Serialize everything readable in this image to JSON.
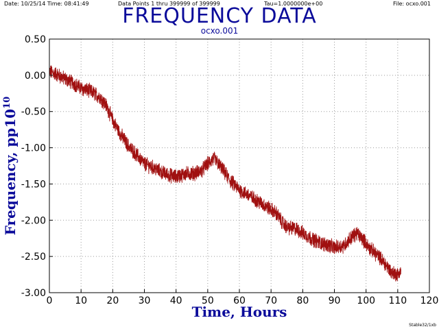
{
  "header": {
    "date_time": "Date: 10/25/14   Time: 08:41:49",
    "points": "Data Points 1 thru 399999 of 399999",
    "tau": "Tau=1.0000000e+00",
    "file": "File: ocxo.001"
  },
  "footer": "Stable32/1xb",
  "colors": {
    "series": "#a01010",
    "title": "#0b0b9a",
    "grid": "#9a9a9a"
  },
  "chart_data": {
    "type": "line",
    "title": "FREQUENCY DATA",
    "subtitle": "ocxo.001",
    "xlabel": "Time, Hours",
    "ylabel_main": "Frequency, pp10",
    "ylabel_exp": "10",
    "xlim": [
      0,
      120
    ],
    "ylim": [
      -3.0,
      0.5
    ],
    "xticks": [
      0,
      10,
      20,
      30,
      40,
      50,
      60,
      70,
      80,
      90,
      100,
      110,
      120
    ],
    "yticks": [
      0.5,
      0.0,
      -0.5,
      -1.0,
      -1.5,
      -2.0,
      -2.5,
      -3.0
    ],
    "ytick_labels": [
      "0.50",
      "0.00",
      "-0.50",
      "-1.00",
      "-1.50",
      "-2.00",
      "-2.50",
      "-3.00"
    ],
    "grid": true,
    "series": [
      {
        "x": [
          0,
          2,
          5,
          8,
          10,
          13,
          16,
          18,
          20,
          22,
          25,
          28,
          30,
          33,
          36,
          38,
          40,
          43,
          46,
          48,
          50,
          52,
          53,
          55,
          57,
          60,
          63,
          66,
          68,
          70,
          72,
          73,
          75,
          78,
          80,
          83,
          86,
          88,
          90,
          93,
          95,
          97,
          99,
          101,
          104,
          106,
          108,
          110,
          111
        ],
        "y": [
          0.05,
          0.02,
          -0.05,
          -0.12,
          -0.18,
          -0.22,
          -0.3,
          -0.42,
          -0.62,
          -0.78,
          -0.98,
          -1.12,
          -1.22,
          -1.28,
          -1.35,
          -1.38,
          -1.4,
          -1.36,
          -1.35,
          -1.32,
          -1.22,
          -1.15,
          -1.2,
          -1.32,
          -1.45,
          -1.58,
          -1.66,
          -1.74,
          -1.8,
          -1.85,
          -1.92,
          -2.0,
          -2.1,
          -2.12,
          -2.18,
          -2.26,
          -2.32,
          -2.34,
          -2.38,
          -2.35,
          -2.25,
          -2.18,
          -2.26,
          -2.38,
          -2.5,
          -2.6,
          -2.72,
          -2.75,
          -2.7
        ]
      }
    ]
  }
}
